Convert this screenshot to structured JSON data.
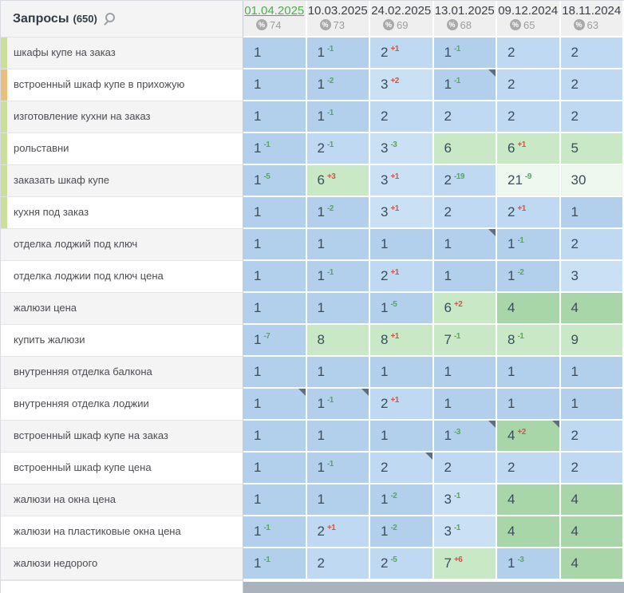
{
  "header": {
    "title": "Запросы",
    "count": "(650)",
    "search_icon": "magnifier",
    "percent_symbol": "%",
    "columns": [
      {
        "date": "01.04.2025",
        "percent": "74",
        "active": true
      },
      {
        "date": "10.03.2025",
        "percent": "73",
        "active": false
      },
      {
        "date": "24.02.2025",
        "percent": "69",
        "active": false
      },
      {
        "date": "13.01.2025",
        "percent": "68",
        "active": false
      },
      {
        "date": "09.12.2024",
        "percent": "65",
        "active": false
      },
      {
        "date": "18.11.2024",
        "percent": "63",
        "active": false
      }
    ]
  },
  "colors": {
    "pos_1": "#b2d0ec",
    "pos_2": "#bed9f1",
    "pos_3": "#cae1f5",
    "pos_4": "#a8d6a8",
    "pos_5_10": "#c9e9c6",
    "pos_11_30": "#eef8ee",
    "pos_31_plus": "#ffffff",
    "delta_improved": "#58a65c",
    "delta_declined": "#c7594c",
    "active_date": "#4fae50",
    "strip_green": "#cbdf9b",
    "strip_orange": "#eabf7d",
    "note_marker": "#5f6e7e"
  },
  "rows": [
    {
      "label": "шкафы купе на заказ",
      "strip": "green",
      "cells": [
        {
          "v": 1
        },
        {
          "v": 1,
          "d": -1
        },
        {
          "v": 2,
          "d": 1
        },
        {
          "v": 1,
          "d": -1
        },
        {
          "v": 2
        },
        {
          "v": 2
        }
      ]
    },
    {
      "label": "встроенный шкаф купе в прихожую",
      "strip": "orange",
      "cells": [
        {
          "v": 1
        },
        {
          "v": 1,
          "d": -2
        },
        {
          "v": 3,
          "d": 2
        },
        {
          "v": 1,
          "d": -1,
          "m": true
        },
        {
          "v": 2
        },
        {
          "v": 2
        }
      ]
    },
    {
      "label": "изготовление кухни на заказ",
      "strip": "green",
      "cells": [
        {
          "v": 1
        },
        {
          "v": 1,
          "d": -1
        },
        {
          "v": 2
        },
        {
          "v": 2
        },
        {
          "v": 2
        },
        {
          "v": 2
        }
      ]
    },
    {
      "label": "рольставни",
      "strip": "green",
      "cells": [
        {
          "v": 1,
          "d": -1
        },
        {
          "v": 2,
          "d": -1
        },
        {
          "v": 3,
          "d": -3
        },
        {
          "v": 6
        },
        {
          "v": 6,
          "d": 1
        },
        {
          "v": 5
        }
      ]
    },
    {
      "label": "заказать шкаф купе",
      "strip": "green",
      "cells": [
        {
          "v": 1,
          "d": -5
        },
        {
          "v": 6,
          "d": 3
        },
        {
          "v": 3,
          "d": 1
        },
        {
          "v": 2,
          "d": -19
        },
        {
          "v": 21,
          "d": -9
        },
        {
          "v": 30
        }
      ]
    },
    {
      "label": "кухня под заказ",
      "strip": "green",
      "cells": [
        {
          "v": 1
        },
        {
          "v": 1,
          "d": -2
        },
        {
          "v": 3,
          "d": 1
        },
        {
          "v": 2
        },
        {
          "v": 2,
          "d": 1
        },
        {
          "v": 1
        }
      ]
    },
    {
      "label": "отделка лоджий под ключ",
      "strip": null,
      "cells": [
        {
          "v": 1
        },
        {
          "v": 1
        },
        {
          "v": 1
        },
        {
          "v": 1,
          "m": true
        },
        {
          "v": 1,
          "d": -1
        },
        {
          "v": 2
        }
      ]
    },
    {
      "label": "отделка лоджии под ключ цена",
      "strip": null,
      "cells": [
        {
          "v": 1
        },
        {
          "v": 1,
          "d": -1
        },
        {
          "v": 2,
          "d": 1
        },
        {
          "v": 1
        },
        {
          "v": 1,
          "d": -2
        },
        {
          "v": 3
        }
      ]
    },
    {
      "label": "жалюзи цена",
      "strip": null,
      "cells": [
        {
          "v": 1
        },
        {
          "v": 1
        },
        {
          "v": 1,
          "d": -5
        },
        {
          "v": 6,
          "d": 2
        },
        {
          "v": 4
        },
        {
          "v": 4
        }
      ]
    },
    {
      "label": "купить жалюзи",
      "strip": null,
      "cells": [
        {
          "v": 1,
          "d": -7
        },
        {
          "v": 8
        },
        {
          "v": 8,
          "d": 1
        },
        {
          "v": 7,
          "d": -1
        },
        {
          "v": 8,
          "d": -1
        },
        {
          "v": 9
        }
      ]
    },
    {
      "label": "внутренняя отделка балкона",
      "strip": null,
      "cells": [
        {
          "v": 1
        },
        {
          "v": 1
        },
        {
          "v": 1
        },
        {
          "v": 1
        },
        {
          "v": 1
        },
        {
          "v": 1
        }
      ]
    },
    {
      "label": "внутренняя отделка лоджии",
      "strip": null,
      "cells": [
        {
          "v": 1,
          "m": true
        },
        {
          "v": 1,
          "d": -1,
          "m": true
        },
        {
          "v": 2,
          "d": 1
        },
        {
          "v": 1
        },
        {
          "v": 1
        },
        {
          "v": 1
        }
      ]
    },
    {
      "label": "встроенный шкаф купе на заказ",
      "strip": null,
      "cells": [
        {
          "v": 1
        },
        {
          "v": 1
        },
        {
          "v": 1
        },
        {
          "v": 1,
          "d": -3,
          "m": true
        },
        {
          "v": 4,
          "d": 2,
          "m": true
        },
        {
          "v": 2
        }
      ]
    },
    {
      "label": "встроенный шкаф купе цена",
      "strip": null,
      "cells": [
        {
          "v": 1
        },
        {
          "v": 1,
          "d": -1
        },
        {
          "v": 2,
          "m": true
        },
        {
          "v": 2
        },
        {
          "v": 2
        },
        {
          "v": 2
        }
      ]
    },
    {
      "label": "жалюзи на окна цена",
      "strip": null,
      "cells": [
        {
          "v": 1
        },
        {
          "v": 1
        },
        {
          "v": 1,
          "d": -2
        },
        {
          "v": 3,
          "d": -1
        },
        {
          "v": 4
        },
        {
          "v": 4
        }
      ]
    },
    {
      "label": "жалюзи на пластиковые окна цена",
      "strip": null,
      "cells": [
        {
          "v": 1,
          "d": -1
        },
        {
          "v": 2,
          "d": 1
        },
        {
          "v": 1,
          "d": -2
        },
        {
          "v": 3,
          "d": -1
        },
        {
          "v": 4
        },
        {
          "v": 4
        }
      ]
    },
    {
      "label": "жалюзи недорого",
      "strip": null,
      "cells": [
        {
          "v": 1,
          "d": -1
        },
        {
          "v": 2
        },
        {
          "v": 2,
          "d": -5
        },
        {
          "v": 7,
          "d": 6
        },
        {
          "v": 1,
          "d": -3
        },
        {
          "v": 4
        }
      ]
    }
  ]
}
